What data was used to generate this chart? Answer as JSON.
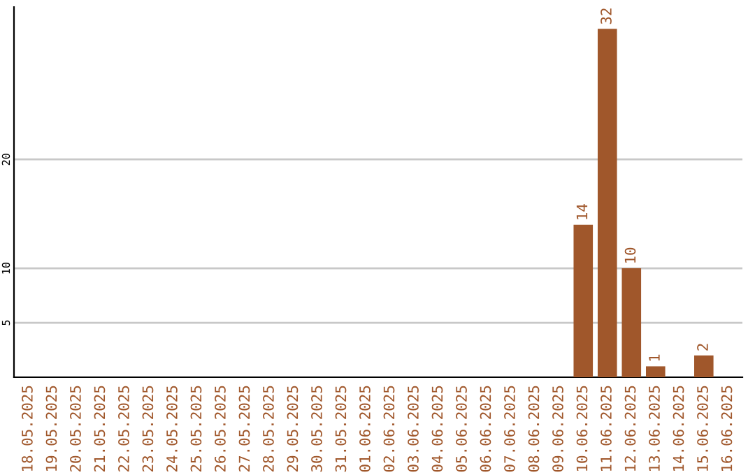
{
  "chart_data": {
    "type": "bar",
    "categories": [
      "18.05.2025",
      "19.05.2025",
      "20.05.2025",
      "21.05.2025",
      "22.05.2025",
      "23.05.2025",
      "24.05.2025",
      "25.05.2025",
      "26.05.2025",
      "27.05.2025",
      "28.05.2025",
      "29.05.2025",
      "30.05.2025",
      "31.05.2025",
      "01.06.2025",
      "02.06.2025",
      "03.06.2025",
      "04.06.2025",
      "05.06.2025",
      "06.06.2025",
      "07.06.2025",
      "08.06.2025",
      "09.06.2025",
      "10.06.2025",
      "11.06.2025",
      "12.06.2025",
      "13.06.2025",
      "14.06.2025",
      "15.06.2025",
      "16.06.2025"
    ],
    "values": [
      null,
      null,
      null,
      null,
      null,
      null,
      null,
      null,
      null,
      null,
      null,
      null,
      null,
      null,
      null,
      null,
      null,
      null,
      null,
      null,
      null,
      null,
      null,
      14,
      32,
      10,
      1,
      null,
      2,
      null
    ],
    "color": "#a0572b",
    "ylim": [
      0,
      34
    ],
    "yticks": [
      5,
      10,
      20
    ],
    "grid": "y",
    "data_labels": true
  }
}
